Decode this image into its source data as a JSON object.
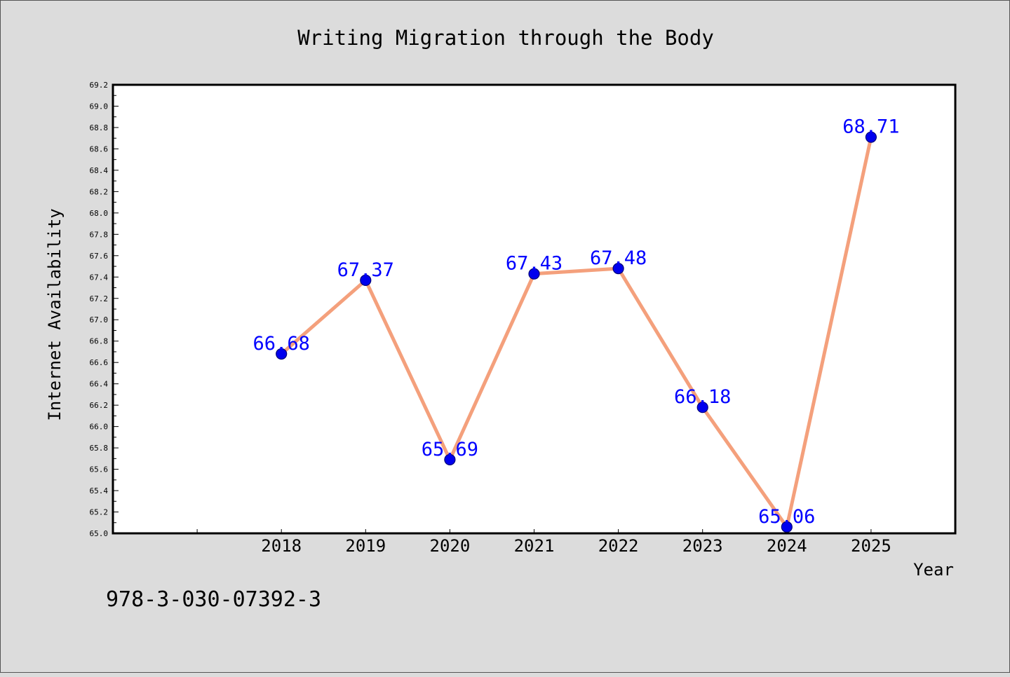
{
  "chart_data": {
    "type": "line",
    "title": "Writing Migration through the Body",
    "xlabel": "Year",
    "ylabel": "Internet Availability",
    "x": [
      2018,
      2019,
      2020,
      2021,
      2022,
      2023,
      2024,
      2025
    ],
    "series": [
      {
        "values": [
          66.68,
          67.37,
          65.69,
          67.43,
          67.48,
          66.18,
          65.06,
          68.71
        ]
      }
    ],
    "data_labels": [
      "66.68",
      "67.37",
      "65.69",
      "67.43",
      "67.48",
      "66.18",
      "65.06",
      "68.71"
    ],
    "xlim": [
      2016,
      2026
    ],
    "ylim": [
      65.0,
      69.2
    ],
    "y_ticks": [
      "65.0",
      "65.2",
      "65.4",
      "65.6",
      "65.8",
      "66.0",
      "66.2",
      "66.4",
      "66.6",
      "66.8",
      "67.0",
      "67.2",
      "67.4",
      "67.6",
      "67.8",
      "68.0",
      "68.2",
      "68.4",
      "68.6",
      "68.8",
      "69.0",
      "69.2"
    ],
    "x_tick_labels": [
      "2018",
      "2019",
      "2020",
      "2021",
      "2022",
      "2023",
      "2024",
      "2025"
    ],
    "grid": false,
    "legend": "none",
    "colors": {
      "line": "#f4a07c",
      "marker": "#0000ee",
      "marker_edge": "#00007a",
      "label": "#0000ff",
      "background": "#dcdcdc",
      "plot_area": "#ffffff"
    }
  },
  "footer": {
    "isbn": "978-3-030-07392-3"
  }
}
